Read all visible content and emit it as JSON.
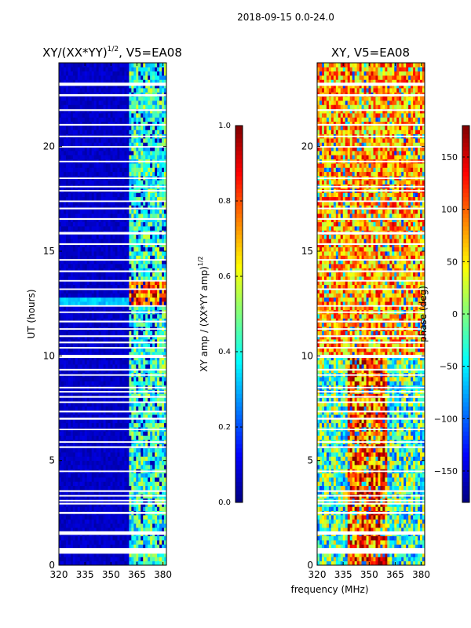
{
  "suptitle": "2018-09-15 0.0-24.0",
  "colors": {
    "jet": [
      "#00007f",
      "#0000ff",
      "#007fff",
      "#00ffff",
      "#7fff7f",
      "#ffff00",
      "#ff7f00",
      "#ff0000",
      "#7f0000"
    ]
  },
  "chart_data": [
    {
      "type": "heatmap",
      "title": "XY/(XX*YY)",
      "title_exponent": "1/2",
      "title_suffix": ", V5=EA08",
      "xlabel": "",
      "ylabel": "UT (hours)",
      "xlim": [
        320,
        382
      ],
      "ylim": [
        0,
        24
      ],
      "xticks": [
        320,
        335,
        350,
        365,
        380
      ],
      "yticks": [
        0,
        5,
        10,
        15,
        20
      ],
      "colorbar": {
        "label": "XY amp / (XX*YY amp)",
        "label_exponent": "1/2",
        "range": [
          0.0,
          1.0
        ],
        "ticks": [
          "0.0",
          "0.2",
          "0.4",
          "0.6",
          "0.8",
          "1.0"
        ]
      },
      "description": "normalized amplitude: low (~0.05) at 320-360 MHz, higher (~0.3-0.5) at 361-380 MHz, peaking ~0.9 near UT 12.5-13.5"
    },
    {
      "type": "heatmap",
      "title": "XY, V5=EA08",
      "xlabel": "frequency (MHz)",
      "ylabel": "",
      "xlim": [
        320,
        382
      ],
      "ylim": [
        0,
        24
      ],
      "xticks": [
        320,
        335,
        350,
        365,
        380
      ],
      "yticks": [
        0,
        5,
        10,
        15,
        20
      ],
      "colorbar": {
        "label": "phase (deg)",
        "range": [
          -180,
          180
        ],
        "ticks": [
          "−150",
          "−100",
          "−50",
          "0",
          "50",
          "100",
          "150"
        ]
      },
      "description": "XY phase in degrees, mostly ~80-140 deg with scatter, more varied (-60 to 40 deg) in 0-10 UT"
    }
  ],
  "flagged_rows": [
    [
      0.55,
      0.82
    ],
    [
      1.45,
      1.62
    ],
    [
      2.45,
      2.55
    ],
    [
      2.9,
      2.98
    ],
    [
      3.05,
      3.12
    ],
    [
      3.28,
      3.35
    ],
    [
      3.5,
      3.58
    ],
    [
      4.45,
      4.52
    ],
    [
      5.6,
      5.68
    ],
    [
      5.85,
      5.92
    ],
    [
      6.45,
      6.52
    ],
    [
      6.95,
      7.05
    ],
    [
      7.3,
      7.38
    ],
    [
      7.75,
      7.82
    ],
    [
      8.0,
      8.08
    ],
    [
      8.25,
      8.32
    ],
    [
      8.45,
      8.52
    ],
    [
      9.05,
      9.12
    ],
    [
      9.3,
      9.38
    ],
    [
      9.9,
      10.05
    ],
    [
      10.35,
      10.42
    ],
    [
      10.6,
      10.68
    ],
    [
      10.9,
      10.98
    ],
    [
      11.25,
      11.32
    ],
    [
      11.6,
      11.68
    ],
    [
      12.05,
      12.12
    ],
    [
      12.35,
      12.42
    ],
    [
      13.15,
      13.22
    ],
    [
      13.55,
      13.62
    ],
    [
      14.0,
      14.08
    ],
    [
      14.55,
      14.62
    ],
    [
      15.3,
      15.38
    ],
    [
      15.8,
      15.92
    ],
    [
      16.5,
      16.58
    ],
    [
      17.0,
      17.08
    ],
    [
      17.35,
      17.42
    ],
    [
      17.85,
      17.92
    ],
    [
      18.05,
      18.12
    ],
    [
      18.45,
      18.52
    ],
    [
      19.25,
      19.32
    ],
    [
      19.95,
      20.02
    ],
    [
      20.45,
      20.52
    ],
    [
      21.0,
      21.08
    ],
    [
      21.7,
      21.78
    ],
    [
      22.4,
      22.5
    ],
    [
      22.9,
      23.05
    ]
  ]
}
